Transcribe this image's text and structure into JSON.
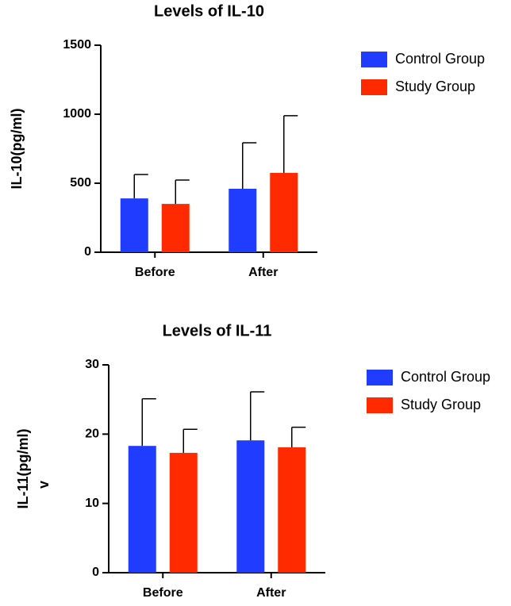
{
  "chart_data": [
    {
      "type": "bar",
      "title": "Levels of IL-10",
      "ylabel": "IL-10(pg/ml)",
      "categories": [
        "Before",
        "After"
      ],
      "series": [
        {
          "name": "Control Group",
          "color": "#1f3cff",
          "values": [
            390,
            460
          ],
          "errors": [
            173,
            333
          ]
        },
        {
          "name": "Study Group",
          "color": "#ff2a00",
          "values": [
            350,
            575
          ],
          "errors": [
            173,
            414
          ]
        }
      ],
      "ylim": [
        0,
        1500
      ],
      "yticks": [
        0,
        500,
        1000,
        1500
      ]
    },
    {
      "type": "bar",
      "title": "Levels of IL-11",
      "ylabel": "IL-11(pg/ml)",
      "annotation": "v",
      "categories": [
        "Before",
        "After"
      ],
      "series": [
        {
          "name": "Control Group",
          "color": "#1f3cff",
          "values": [
            18.3,
            19.1
          ],
          "errors": [
            6.8,
            7.0
          ]
        },
        {
          "name": "Study Group",
          "color": "#ff2a00",
          "values": [
            17.3,
            18.1
          ],
          "errors": [
            3.4,
            2.9
          ]
        }
      ],
      "ylim": [
        0,
        30
      ],
      "yticks": [
        0,
        10,
        20,
        30
      ]
    }
  ]
}
